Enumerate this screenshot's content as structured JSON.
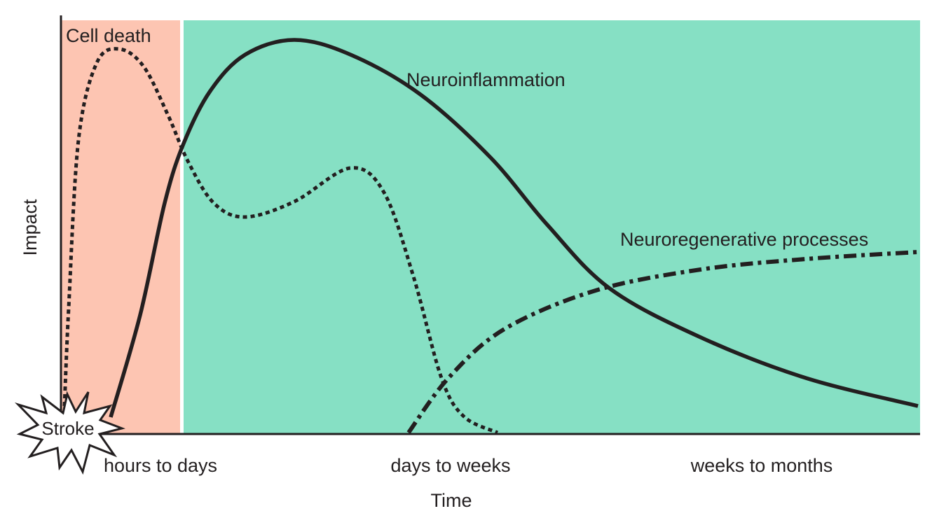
{
  "title_labels": {
    "cell_death": "Cell death",
    "neuroinflammation": "Neuroinflammation",
    "neuroregenerative": "Neuroregenerative processes",
    "stroke": "Stroke"
  },
  "axes": {
    "ylabel": "Impact",
    "xlabel": "Time",
    "xticks": [
      "hours to days",
      "days to weeks",
      "weeks to months"
    ]
  },
  "colors": {
    "phase_acute": "#fdc5b2",
    "phase_later": "#86e0c4",
    "line": "#231f20"
  }
}
